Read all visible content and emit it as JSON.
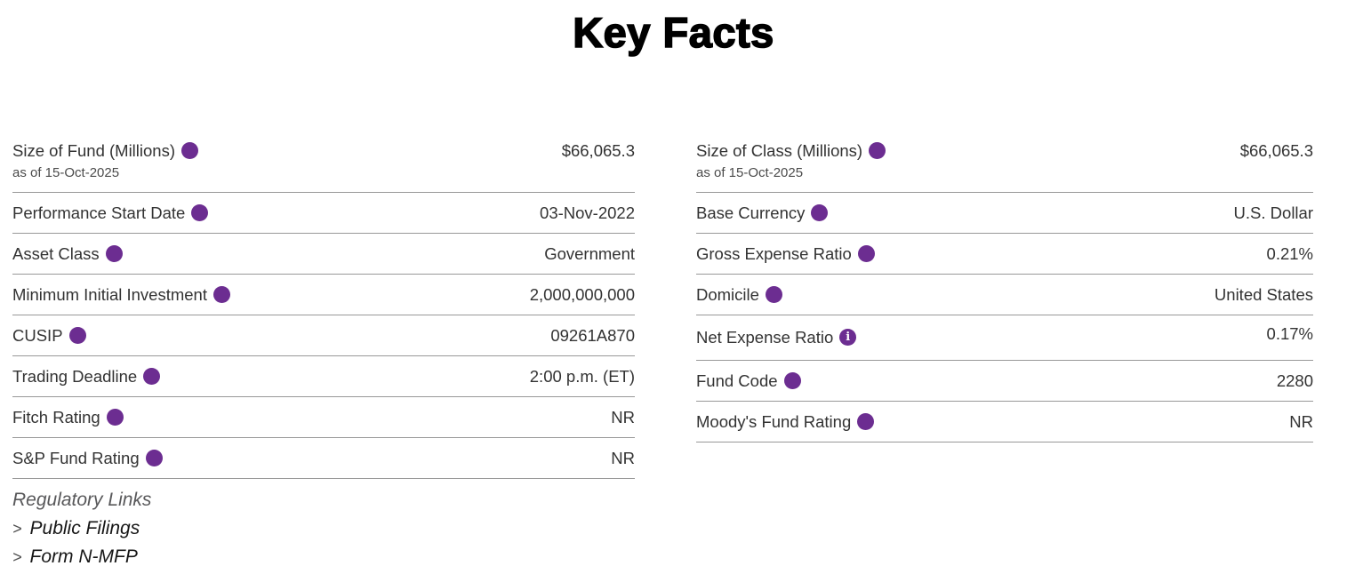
{
  "title": "Key Facts",
  "colors": {
    "accent_purple": "#6C2D91",
    "text": "#333333",
    "divider": "#989898",
    "link": "#161616",
    "muted": "#58585A"
  },
  "icons": {
    "info": "i",
    "chevron_right": ">"
  },
  "columns": {
    "left": {
      "rows": [
        {
          "label": "Size of Fund (Millions)",
          "sub": "as of 15-Oct-2025",
          "value": "$66,065.3"
        },
        {
          "label": "Performance Start Date",
          "value": "03-Nov-2022"
        },
        {
          "label": "Asset Class",
          "value": "Government"
        },
        {
          "label": "Minimum Initial Investment",
          "value": "2,000,000,000"
        },
        {
          "label": "CUSIP",
          "value": "09261A870"
        },
        {
          "label": "Trading Deadline",
          "value": "2:00 p.m. (ET)"
        },
        {
          "label": "Fitch Rating",
          "value": "NR"
        },
        {
          "label": "S&P Fund Rating",
          "value": "NR"
        }
      ],
      "regulatory": {
        "heading": "Regulatory Links",
        "links": [
          {
            "prefix": ">",
            "label": "Public Filings"
          },
          {
            "prefix": ">",
            "label": "Form N-MFP"
          }
        ]
      }
    },
    "right": {
      "rows": [
        {
          "label": "Size of Class (Millions)",
          "sub": "as of 15-Oct-2025",
          "value": "$66,065.3"
        },
        {
          "label": "Base Currency",
          "value": "U.S. Dollar"
        },
        {
          "label": "Gross Expense Ratio",
          "value": "0.21%"
        },
        {
          "label": "Domicile",
          "value": "United States"
        },
        {
          "label": "Net Expense Ratio",
          "value": "0.17%",
          "info_icon": true
        },
        {
          "label": "Fund Code",
          "value": "2280"
        },
        {
          "label": "Moody's Fund Rating",
          "value": "NR"
        }
      ]
    }
  }
}
